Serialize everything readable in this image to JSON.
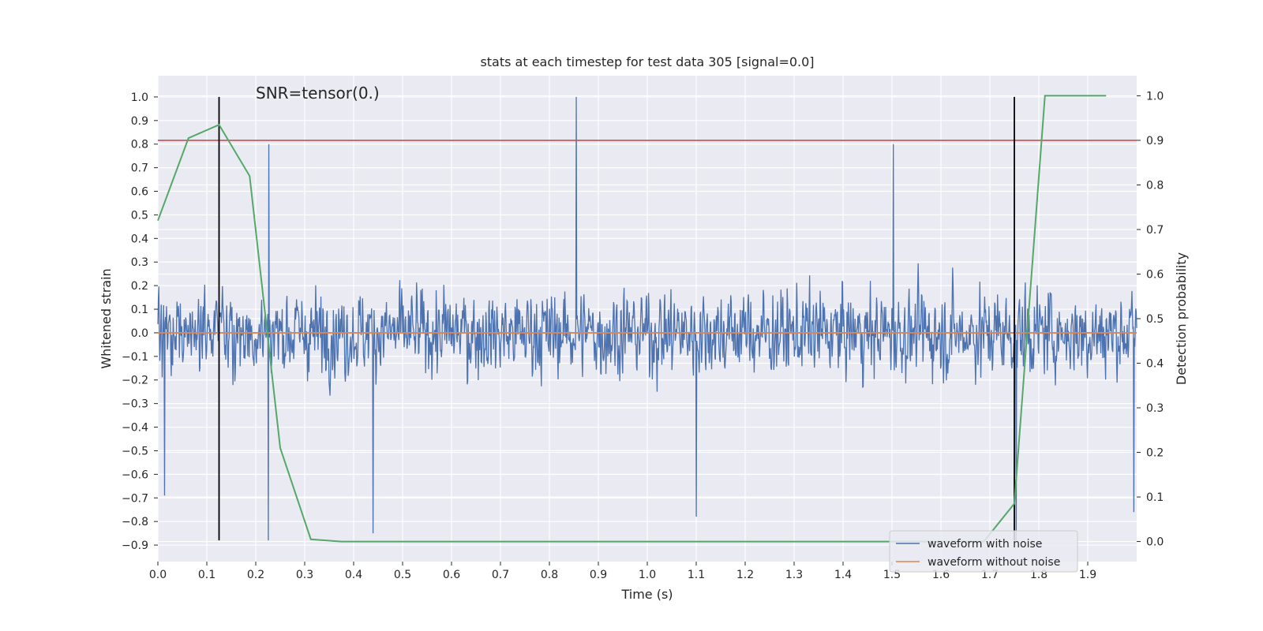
{
  "chart_data": {
    "type": "line",
    "title": "stats at each timestep for test data 305 [signal=0.0]",
    "xlabel": "Time (s)",
    "ylabel": "Whitened strain",
    "y2label": "Detection probability",
    "annotation": "SNR=tensor(0.)",
    "xlim": [
      0.0,
      2.0
    ],
    "ylim": [
      -0.97,
      1.09
    ],
    "y2lim": [
      -0.045,
      1.045
    ],
    "xticks": [
      0.0,
      0.1,
      0.2,
      0.3,
      0.4,
      0.5,
      0.6,
      0.7,
      0.8,
      0.9,
      1.0,
      1.1,
      1.2,
      1.3,
      1.4,
      1.5,
      1.6,
      1.7,
      1.8,
      1.9
    ],
    "xtick_labels": [
      "0.0",
      "0.1",
      "0.2",
      "0.3",
      "0.4",
      "0.5",
      "0.6",
      "0.7",
      "0.8",
      "0.9",
      "1.0",
      "1.1",
      "1.2",
      "1.3",
      "1.4",
      "1.5",
      "1.6",
      "1.7",
      "1.8",
      "1.9"
    ],
    "yticks": [
      1.0,
      0.9,
      0.8,
      0.7,
      0.6,
      0.5,
      0.4,
      0.3,
      0.2,
      0.1,
      0.0,
      -0.1,
      -0.2,
      -0.3,
      -0.4,
      -0.5,
      -0.6,
      -0.7,
      -0.8,
      -0.9
    ],
    "ytick_labels": [
      "1.0",
      "0.9",
      "0.8",
      "0.7",
      "0.6",
      "0.5",
      "0.4",
      "0.3",
      "0.2",
      "0.1",
      "0.0",
      "−0.1",
      "−0.2",
      "−0.3",
      "−0.4",
      "−0.5",
      "−0.6",
      "−0.7",
      "−0.8",
      "−0.9"
    ],
    "y2ticks": [
      1.0,
      0.9,
      0.8,
      0.7,
      0.6,
      0.5,
      0.4,
      0.3,
      0.2,
      0.1,
      0.0
    ],
    "y2tick_labels": [
      "1.0",
      "0.9",
      "0.8",
      "0.7",
      "0.6",
      "0.5",
      "0.4",
      "0.3",
      "0.2",
      "0.1",
      "0.0"
    ],
    "legend": {
      "location": "lower right",
      "entries": [
        {
          "label": "waveform with noise",
          "color": "#4c72b0"
        },
        {
          "label": "waveform without noise",
          "color": "#dd8452"
        }
      ]
    },
    "noise_series": {
      "name": "waveform with noise",
      "color": "#4c72b0",
      "x_start": 0.0,
      "x_end": 2.0,
      "n_points": 2048,
      "amplitude": 0.35,
      "peaks": [
        {
          "x": 0.855,
          "y": 1.0
        },
        {
          "x": 0.226,
          "y": -0.88
        },
        {
          "x": 0.227,
          "y": 0.8
        },
        {
          "x": 0.44,
          "y": -0.85
        },
        {
          "x": 1.1,
          "y": -0.78
        },
        {
          "x": 1.754,
          "y": -0.88
        },
        {
          "x": 1.503,
          "y": 0.8
        },
        {
          "x": 1.994,
          "y": -0.76
        },
        {
          "x": 0.014,
          "y": -0.69
        }
      ]
    },
    "clean_series": {
      "name": "waveform without noise",
      "color": "#dd8452",
      "x": [
        0.0,
        2.0
      ],
      "y": [
        0.0,
        0.0
      ]
    },
    "probability_series": {
      "name": "Detection probability",
      "color": "#55a868",
      "axis": "right",
      "x": [
        0.0,
        0.0625,
        0.125,
        0.1875,
        0.25,
        0.3125,
        0.375,
        0.4375,
        0.5,
        1.0,
        1.5,
        1.6875,
        1.75,
        1.8125,
        1.875,
        1.9375
      ],
      "y": [
        0.72,
        0.905,
        0.935,
        0.82,
        0.21,
        0.005,
        0.0,
        0.0,
        0.0,
        0.0,
        0.0,
        0.0,
        0.085,
        1.0,
        1.0,
        1.0
      ]
    },
    "threshold": {
      "axis": "right",
      "y": 0.9,
      "color": "#c44e52"
    },
    "vlines": [
      {
        "x": 0.125,
        "ymin": -0.88,
        "ymax": 1.0,
        "color": "#000000"
      },
      {
        "x": 1.75,
        "ymin": -0.88,
        "ymax": 1.0,
        "color": "#000000"
      }
    ]
  }
}
